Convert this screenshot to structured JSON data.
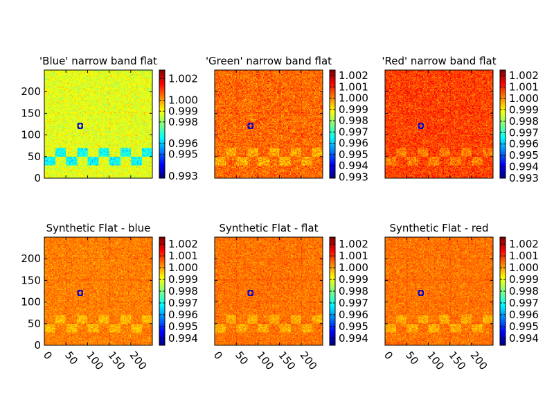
{
  "chart_data": [
    {
      "type": "heatmap",
      "title": "'Blue' narrow band flat",
      "x_range": [
        0,
        249
      ],
      "y_range": [
        0,
        249
      ],
      "x_ticks": [
        0,
        50,
        100,
        150,
        200
      ],
      "y_ticks": [
        0,
        50,
        100,
        150,
        200
      ],
      "x_tick_labels_visible": false,
      "y_tick_labels_visible": true,
      "colormap": "jet",
      "background_level": 0.9988,
      "color_range": [
        0.9928,
        1.0028
      ],
      "colorbar_ticks": [
        "0.993",
        "0.995",
        "0.996",
        "0.998",
        "0.999",
        "1.000",
        "1.002"
      ],
      "colorbar_tick_values": [
        0.993,
        0.995,
        0.996,
        0.998,
        0.999,
        1.0,
        1.002
      ]
    },
    {
      "type": "heatmap",
      "title": "'Green' narrow band flat",
      "x_range": [
        0,
        249
      ],
      "y_range": [
        0,
        249
      ],
      "x_ticks": [
        0,
        50,
        100,
        150,
        200
      ],
      "y_ticks": [
        0,
        50,
        100,
        150,
        200
      ],
      "x_tick_labels_visible": false,
      "y_tick_labels_visible": false,
      "colormap": "jet",
      "background_level": 1.0003,
      "color_range": [
        0.9929,
        1.0025
      ],
      "colorbar_ticks": [
        "0.993",
        "0.994",
        "0.995",
        "0.996",
        "0.997",
        "0.998",
        "0.999",
        "1.000",
        "1.001",
        "1.002"
      ],
      "colorbar_tick_values": [
        0.993,
        0.994,
        0.995,
        0.996,
        0.997,
        0.998,
        0.999,
        1.0,
        1.001,
        1.002
      ]
    },
    {
      "type": "heatmap",
      "title": "'Red' narrow band flat",
      "x_range": [
        0,
        249
      ],
      "y_range": [
        0,
        249
      ],
      "x_ticks": [
        0,
        50,
        100,
        150,
        200
      ],
      "y_ticks": [
        0,
        50,
        100,
        150,
        200
      ],
      "x_tick_labels_visible": false,
      "y_tick_labels_visible": false,
      "colormap": "jet",
      "background_level": 1.0007,
      "color_range": [
        0.993,
        1.0025
      ],
      "colorbar_ticks": [
        "0.993",
        "0.994",
        "0.995",
        "0.996",
        "0.997",
        "0.998",
        "0.999",
        "1.000",
        "1.001",
        "1.002"
      ],
      "colorbar_tick_values": [
        0.993,
        0.994,
        0.995,
        0.996,
        0.997,
        0.998,
        0.999,
        1.0,
        1.001,
        1.002
      ]
    },
    {
      "type": "heatmap",
      "title": "Synthetic Flat - blue",
      "x_range": [
        0,
        249
      ],
      "y_range": [
        0,
        249
      ],
      "x_ticks": [
        0,
        50,
        100,
        150,
        200
      ],
      "y_ticks": [
        0,
        50,
        100,
        150,
        200
      ],
      "x_tick_labels_visible": true,
      "y_tick_labels_visible": true,
      "colormap": "jet",
      "background_level": 1.0003,
      "color_range": [
        0.9934,
        1.0026
      ],
      "colorbar_ticks": [
        "0.994",
        "0.995",
        "0.996",
        "0.997",
        "0.998",
        "0.999",
        "1.000",
        "1.001",
        "1.002"
      ],
      "colorbar_tick_values": [
        0.994,
        0.995,
        0.996,
        0.997,
        0.998,
        0.999,
        1.0,
        1.001,
        1.002
      ]
    },
    {
      "type": "heatmap",
      "title": "Synthetic Flat - flat",
      "x_range": [
        0,
        249
      ],
      "y_range": [
        0,
        249
      ],
      "x_ticks": [
        0,
        50,
        100,
        150,
        200
      ],
      "y_ticks": [
        0,
        50,
        100,
        150,
        200
      ],
      "x_tick_labels_visible": true,
      "y_tick_labels_visible": false,
      "colormap": "jet",
      "background_level": 1.0004,
      "color_range": [
        0.9934,
        1.0026
      ],
      "colorbar_ticks": [
        "0.994",
        "0.995",
        "0.996",
        "0.997",
        "0.998",
        "0.999",
        "1.000",
        "1.001",
        "1.002"
      ],
      "colorbar_tick_values": [
        0.994,
        0.995,
        0.996,
        0.997,
        0.998,
        0.999,
        1.0,
        1.001,
        1.002
      ]
    },
    {
      "type": "heatmap",
      "title": "Synthetic Flat - red",
      "x_range": [
        0,
        249
      ],
      "y_range": [
        0,
        249
      ],
      "x_ticks": [
        0,
        50,
        100,
        150,
        200
      ],
      "y_ticks": [
        0,
        50,
        100,
        150,
        200
      ],
      "x_tick_labels_visible": true,
      "y_tick_labels_visible": false,
      "colormap": "jet",
      "background_level": 1.0004,
      "color_range": [
        0.9934,
        1.0026
      ],
      "colorbar_ticks": [
        "0.994",
        "0.995",
        "0.996",
        "0.997",
        "0.998",
        "0.999",
        "1.000",
        "1.001",
        "1.002"
      ],
      "colorbar_tick_values": [
        0.994,
        0.995,
        0.996,
        0.997,
        0.998,
        0.999,
        1.0,
        1.001,
        1.002
      ]
    }
  ]
}
